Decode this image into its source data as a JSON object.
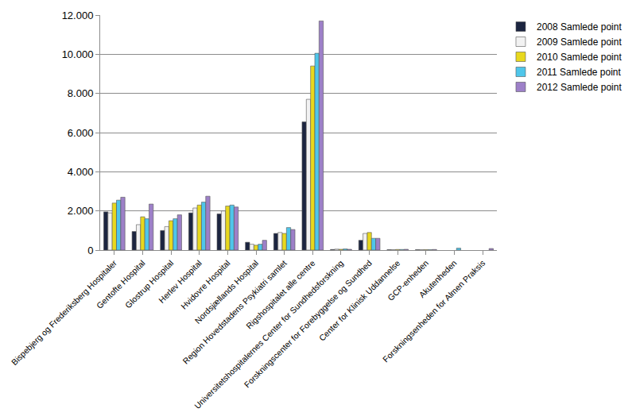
{
  "chart_data": {
    "type": "bar",
    "categories": [
      "Bispebjerg og Frederiksberg Hospitaler",
      "Gentofte Hospital",
      "Glostrup Hospital",
      "Herlev Hospital",
      "Hvidovre Hospital",
      "Nordsjællands Hospital",
      "Region Hovedstadens Psykiatri samlet",
      "Rigshospitalet alle centre",
      "Universitetshospitalernes Center for Sundhedsforskning",
      "Forskningscenter for Forebyggelse og Sundhed",
      "Center for Klinisk Uddannelse",
      "GCP-enheden",
      "Akutenheden",
      "Forskningsenheden for Almen Praksis"
    ],
    "series": [
      {
        "name": "2008 Samlede point",
        "color": "#1c2540",
        "values": [
          1950,
          950,
          1000,
          1900,
          1850,
          400,
          850,
          6550,
          30,
          500,
          20,
          20,
          null,
          null
        ]
      },
      {
        "name": "2009 Samlede point",
        "color": "#f2f2f2",
        "values": [
          1900,
          1300,
          1200,
          2150,
          2000,
          300,
          900,
          7700,
          50,
          850,
          20,
          20,
          null,
          null
        ]
      },
      {
        "name": "2010 Samlede point",
        "color": "#e8d81e",
        "values": [
          2400,
          1700,
          1500,
          2300,
          2250,
          250,
          850,
          9400,
          40,
          900,
          30,
          20,
          null,
          null
        ]
      },
      {
        "name": "2011 Samlede point",
        "color": "#4fc6ea",
        "values": [
          2550,
          1600,
          1600,
          2450,
          2300,
          300,
          1150,
          10050,
          60,
          600,
          30,
          20,
          100,
          null
        ]
      },
      {
        "name": "2012 Samlede point",
        "color": "#9d80c8",
        "values": [
          2700,
          2350,
          1800,
          2750,
          2200,
          500,
          1050,
          11700,
          40,
          600,
          40,
          30,
          null,
          80
        ]
      }
    ],
    "ylim": [
      0,
      12000
    ],
    "yticks": [
      0,
      {
        "value": 2000,
        "label": "2.000"
      },
      {
        "value": 4000,
        "label": "4.000"
      },
      {
        "value": 6000,
        "label": "6.000"
      },
      {
        "value": 8000,
        "label": "8.000"
      },
      {
        "value": 10000,
        "label": "10.000"
      },
      {
        "value": 12000,
        "label": "12.000"
      }
    ],
    "grid": true,
    "legend": "right"
  }
}
